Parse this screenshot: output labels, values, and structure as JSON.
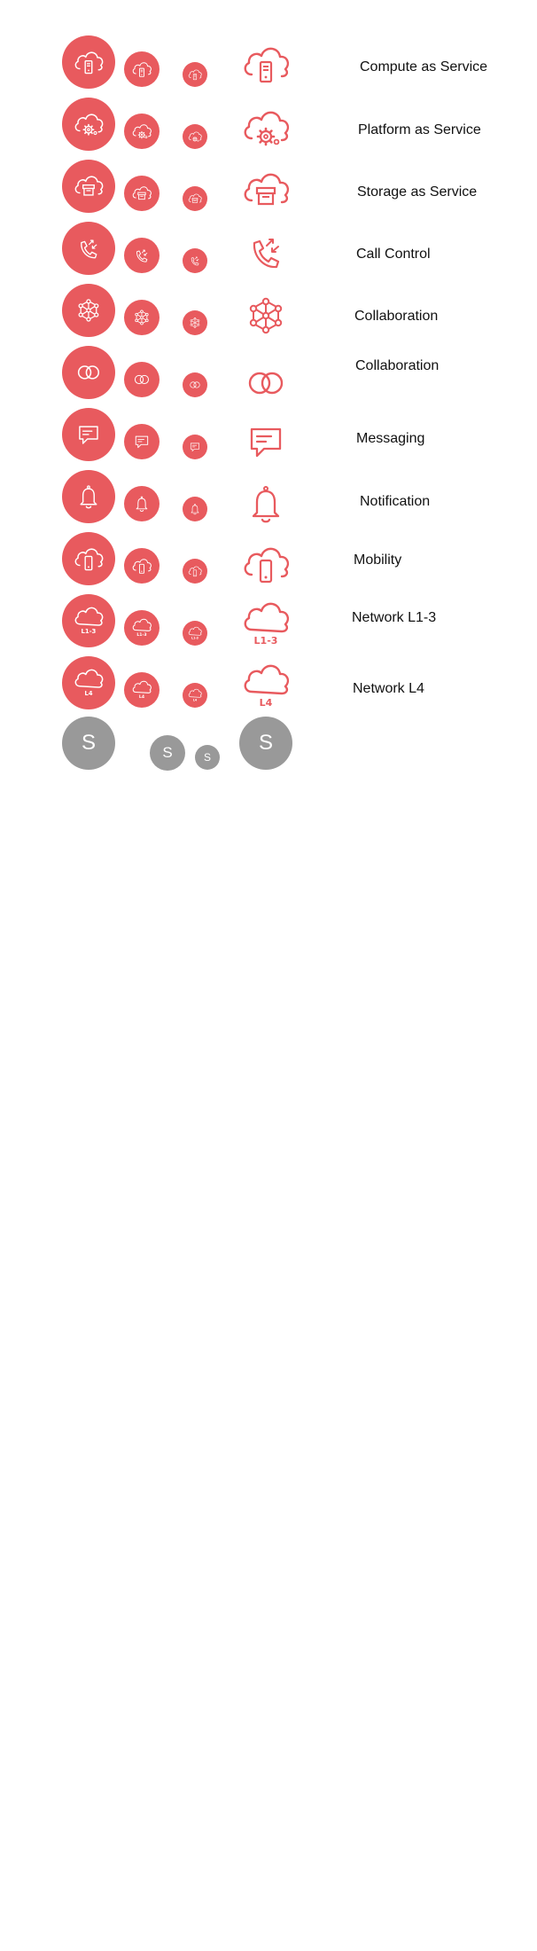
{
  "colors": {
    "accent": "#e85a5e",
    "stroke": "#ffffff",
    "neutral": "#999999",
    "text": "#111111"
  },
  "rows": [
    {
      "icon": "cloud-server-icon",
      "label": "Compute as Service"
    },
    {
      "icon": "cloud-gear-icon",
      "label": "Platform  as Service"
    },
    {
      "icon": "cloud-storage-icon",
      "label": "Storage as Service"
    },
    {
      "icon": "phone-call-icon",
      "label": "Call Control"
    },
    {
      "icon": "network-nodes-icon",
      "label": "Collaboration"
    },
    {
      "icon": "linked-circles-icon",
      "label": "Collaboration"
    },
    {
      "icon": "chat-bubble-icon",
      "label": "Messaging"
    },
    {
      "icon": "bell-icon",
      "label": "Notification"
    },
    {
      "icon": "cloud-mobile-icon",
      "label": "Mobility"
    },
    {
      "icon": "cloud-l13-icon",
      "label": "Network L1-3",
      "badge": "L1-3"
    },
    {
      "icon": "cloud-l4-icon",
      "label": "Network L4",
      "badge": "L4"
    }
  ],
  "letter_row": {
    "letter": "S"
  }
}
